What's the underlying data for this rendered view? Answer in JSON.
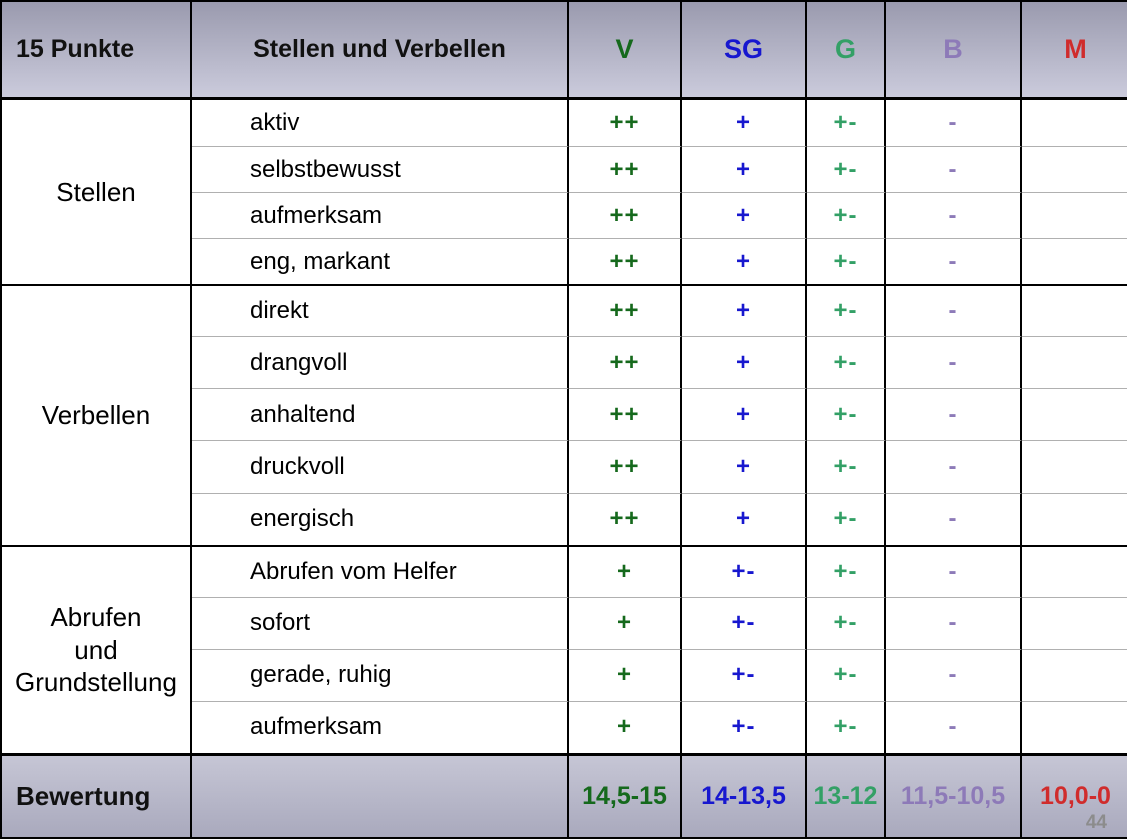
{
  "page_number": "44",
  "header": {
    "col1": "15 Punkte",
    "col2": "Stellen und Verbellen",
    "grades": [
      {
        "label": "V",
        "color": "#15691c"
      },
      {
        "label": "SG",
        "color": "#1717cf"
      },
      {
        "label": "G",
        "color": "#33a066"
      },
      {
        "label": "B",
        "color": "#8d7ab8"
      },
      {
        "label": "M",
        "color": "#d02c2c"
      }
    ]
  },
  "groups": [
    {
      "label": "Stellen",
      "rows": [
        {
          "criterion": "aktiv",
          "marks": [
            "++",
            "+",
            "+-",
            "-",
            ""
          ]
        },
        {
          "criterion": "selbstbewusst",
          "marks": [
            "++",
            "+",
            "+-",
            "-",
            ""
          ]
        },
        {
          "criterion": "aufmerksam",
          "marks": [
            "++",
            "+",
            "+-",
            "-",
            ""
          ]
        },
        {
          "criterion": "eng, markant",
          "marks": [
            "++",
            "+",
            "+-",
            "-",
            ""
          ]
        }
      ]
    },
    {
      "label": "Verbellen",
      "rows": [
        {
          "criterion": "direkt",
          "marks": [
            "++",
            "+",
            "+-",
            "-",
            ""
          ]
        },
        {
          "criterion": "drangvoll",
          "marks": [
            "++",
            "+",
            "+-",
            "-",
            ""
          ]
        },
        {
          "criterion": "anhaltend",
          "marks": [
            "++",
            "+",
            "+-",
            "-",
            ""
          ]
        },
        {
          "criterion": "druckvoll",
          "marks": [
            "++",
            "+",
            "+-",
            "-",
            ""
          ]
        },
        {
          "criterion": "energisch",
          "marks": [
            "++",
            "+",
            "+-",
            "-",
            ""
          ]
        }
      ]
    },
    {
      "label": "Abrufen\nund\nGrundstellung",
      "rows": [
        {
          "criterion": "Abrufen vom Helfer",
          "marks": [
            "+",
            "+-",
            "+-",
            "-",
            ""
          ]
        },
        {
          "criterion": "sofort",
          "marks": [
            "+",
            "+-",
            "+-",
            "-",
            ""
          ]
        },
        {
          "criterion": "gerade, ruhig",
          "marks": [
            "+",
            "+-",
            "+-",
            "-",
            ""
          ]
        },
        {
          "criterion": "aufmerksam",
          "marks": [
            "+",
            "+-",
            "+-",
            "-",
            ""
          ]
        }
      ]
    }
  ],
  "footer": {
    "label": "Bewertung",
    "values": [
      "14,5-15",
      "14-13,5",
      "13-12",
      "11,5-10,5",
      "10,0-0"
    ]
  }
}
